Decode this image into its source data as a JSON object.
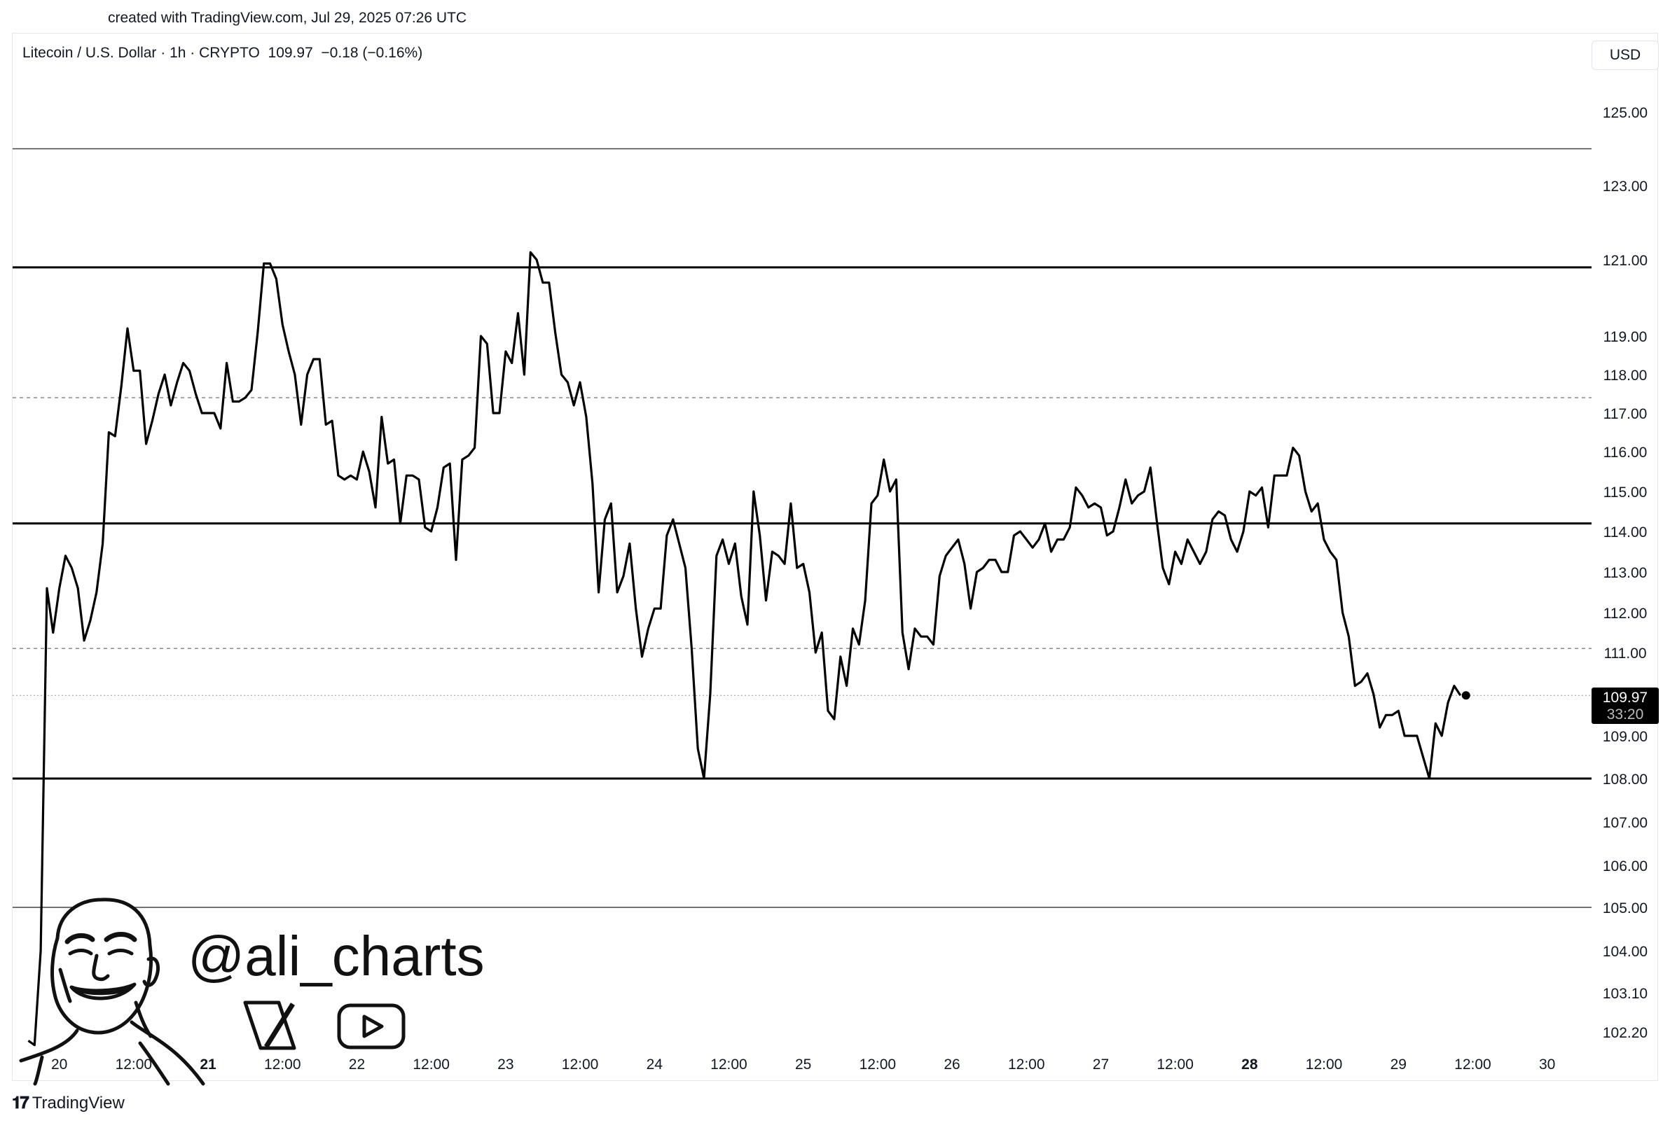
{
  "header": {
    "credit": "created with TradingView.com, Jul 29, 2025 07:26 UTC"
  },
  "legend": {
    "symbol": "Litecoin / U.S. Dollar · 1h · CRYPTO",
    "price": "109.97",
    "change": "−0.18 (−0.16%)"
  },
  "currency_label": "USD",
  "price_tag": {
    "price": "109.97",
    "countdown": "33:20"
  },
  "watermark": {
    "handle": "@ali_charts",
    "icons": [
      "x-logo-icon",
      "youtube-icon",
      "cartoon-avatar"
    ]
  },
  "footer": {
    "brand": "TradingView"
  },
  "colors": {
    "line": "#000000",
    "grid_dash": "#888888",
    "tag_bg": "#000000"
  },
  "chart_data": {
    "type": "line",
    "title": "",
    "xlabel": "",
    "ylabel": "",
    "x_tick_labels": [
      {
        "label": "20",
        "t": -11,
        "bold": false
      },
      {
        "label": "12:00",
        "t": 1,
        "bold": false
      },
      {
        "label": "21",
        "t": 13,
        "bold": true
      },
      {
        "label": "12:00",
        "t": 25,
        "bold": false
      },
      {
        "label": "22",
        "t": 37,
        "bold": false
      },
      {
        "label": "12:00",
        "t": 49,
        "bold": false
      },
      {
        "label": "23",
        "t": 61,
        "bold": false
      },
      {
        "label": "12:00",
        "t": 73,
        "bold": false
      },
      {
        "label": "24",
        "t": 85,
        "bold": false
      },
      {
        "label": "12:00",
        "t": 97,
        "bold": false
      },
      {
        "label": "25",
        "t": 109,
        "bold": false
      },
      {
        "label": "12:00",
        "t": 121,
        "bold": false
      },
      {
        "label": "26",
        "t": 133,
        "bold": false
      },
      {
        "label": "12:00",
        "t": 145,
        "bold": false
      },
      {
        "label": "27",
        "t": 157,
        "bold": false
      },
      {
        "label": "12:00",
        "t": 169,
        "bold": false
      },
      {
        "label": "28",
        "t": 181,
        "bold": true
      },
      {
        "label": "12:00",
        "t": 193,
        "bold": false
      },
      {
        "label": "29",
        "t": 205,
        "bold": false
      },
      {
        "label": "12:00",
        "t": 217,
        "bold": false
      },
      {
        "label": "30",
        "t": 229,
        "bold": false
      }
    ],
    "y_tick_labels": [
      "125.00",
      "123.00",
      "121.00",
      "119.00",
      "118.00",
      "117.00",
      "116.00",
      "115.00",
      "114.00",
      "113.00",
      "112.00",
      "111.00",
      "109.00",
      "108.00",
      "107.00",
      "106.00",
      "105.00",
      "104.00",
      "103.10",
      "102.20"
    ],
    "time_unit": "hours from Jul 20 12:00",
    "series": [
      {
        "values": [
          [
            -16,
            102.0
          ],
          [
            -15,
            101.9
          ],
          [
            -14,
            104.0
          ],
          [
            -13,
            112.6
          ],
          [
            -12,
            111.5
          ],
          [
            -11,
            112.6
          ],
          [
            -10,
            113.4
          ],
          [
            -9,
            113.1
          ],
          [
            -8,
            112.6
          ],
          [
            -7,
            111.3
          ],
          [
            -6,
            111.8
          ],
          [
            -5,
            112.5
          ],
          [
            -4,
            113.7
          ],
          [
            -3,
            116.5
          ],
          [
            -2,
            116.4
          ],
          [
            -1,
            117.7
          ],
          [
            0,
            119.2
          ],
          [
            1,
            118.1
          ],
          [
            2,
            118.1
          ],
          [
            3,
            116.2
          ],
          [
            4,
            116.8
          ],
          [
            5,
            117.5
          ],
          [
            6,
            118.0
          ],
          [
            7,
            117.2
          ],
          [
            8,
            117.8
          ],
          [
            9,
            118.3
          ],
          [
            10,
            118.1
          ],
          [
            11,
            117.5
          ],
          [
            12,
            117.0
          ],
          [
            13,
            117.0
          ],
          [
            14,
            117.0
          ],
          [
            15,
            116.6
          ],
          [
            16,
            118.3
          ],
          [
            17,
            117.3
          ],
          [
            18,
            117.3
          ],
          [
            19,
            117.4
          ],
          [
            20,
            117.6
          ],
          [
            21,
            119.1
          ],
          [
            22,
            120.9
          ],
          [
            23,
            120.9
          ],
          [
            24,
            120.5
          ],
          [
            25,
            119.3
          ],
          [
            26,
            118.6
          ],
          [
            27,
            118.0
          ],
          [
            28,
            116.7
          ],
          [
            29,
            118.0
          ],
          [
            30,
            118.4
          ],
          [
            31,
            118.4
          ],
          [
            32,
            116.7
          ],
          [
            33,
            116.8
          ],
          [
            34,
            115.4
          ],
          [
            35,
            115.3
          ],
          [
            36,
            115.4
          ],
          [
            37,
            115.3
          ],
          [
            38,
            116.0
          ],
          [
            39,
            115.5
          ],
          [
            40,
            114.6
          ],
          [
            41,
            116.9
          ],
          [
            42,
            115.7
          ],
          [
            43,
            115.8
          ],
          [
            44,
            114.2
          ],
          [
            45,
            115.4
          ],
          [
            46,
            115.4
          ],
          [
            47,
            115.3
          ],
          [
            48,
            114.1
          ],
          [
            49,
            114.0
          ],
          [
            50,
            114.6
          ],
          [
            51,
            115.6
          ],
          [
            52,
            115.7
          ],
          [
            53,
            113.3
          ],
          [
            54,
            115.8
          ],
          [
            55,
            115.9
          ],
          [
            56,
            116.1
          ],
          [
            57,
            119.0
          ],
          [
            58,
            118.8
          ],
          [
            59,
            117.0
          ],
          [
            60,
            117.0
          ],
          [
            61,
            118.6
          ],
          [
            62,
            118.3
          ],
          [
            63,
            119.6
          ],
          [
            64,
            118.0
          ],
          [
            65,
            121.2
          ],
          [
            66,
            121.0
          ],
          [
            67,
            120.4
          ],
          [
            68,
            120.4
          ],
          [
            69,
            119.1
          ],
          [
            70,
            118.0
          ],
          [
            71,
            117.8
          ],
          [
            72,
            117.2
          ],
          [
            73,
            117.8
          ],
          [
            74,
            116.9
          ],
          [
            75,
            115.2
          ],
          [
            76,
            112.5
          ],
          [
            77,
            114.3
          ],
          [
            78,
            114.7
          ],
          [
            79,
            112.5
          ],
          [
            80,
            112.9
          ],
          [
            81,
            113.7
          ],
          [
            82,
            112.1
          ],
          [
            83,
            110.9
          ],
          [
            84,
            111.6
          ],
          [
            85,
            112.1
          ],
          [
            86,
            112.1
          ],
          [
            87,
            113.9
          ],
          [
            88,
            114.3
          ],
          [
            89,
            113.7
          ],
          [
            90,
            113.1
          ],
          [
            91,
            111.1
          ],
          [
            92,
            108.7
          ],
          [
            93,
            108.0
          ],
          [
            94,
            110.0
          ],
          [
            95,
            113.4
          ],
          [
            96,
            113.8
          ],
          [
            97,
            113.2
          ],
          [
            98,
            113.7
          ],
          [
            99,
            112.4
          ],
          [
            100,
            111.7
          ],
          [
            101,
            115.0
          ],
          [
            102,
            113.9
          ],
          [
            103,
            112.3
          ],
          [
            104,
            113.5
          ],
          [
            105,
            113.4
          ],
          [
            106,
            113.2
          ],
          [
            107,
            114.7
          ],
          [
            108,
            113.1
          ],
          [
            109,
            113.2
          ],
          [
            110,
            112.5
          ],
          [
            111,
            111.0
          ],
          [
            112,
            111.5
          ],
          [
            113,
            109.6
          ],
          [
            114,
            109.4
          ],
          [
            115,
            110.9
          ],
          [
            116,
            110.2
          ],
          [
            117,
            111.6
          ],
          [
            118,
            111.2
          ],
          [
            119,
            112.3
          ],
          [
            120,
            114.7
          ],
          [
            121,
            114.9
          ],
          [
            122,
            115.8
          ],
          [
            123,
            115.0
          ],
          [
            124,
            115.3
          ],
          [
            125,
            111.5
          ],
          [
            126,
            110.6
          ],
          [
            127,
            111.6
          ],
          [
            128,
            111.4
          ],
          [
            129,
            111.4
          ],
          [
            130,
            111.2
          ],
          [
            131,
            112.9
          ],
          [
            132,
            113.4
          ],
          [
            133,
            113.6
          ],
          [
            134,
            113.8
          ],
          [
            135,
            113.2
          ],
          [
            136,
            112.1
          ],
          [
            137,
            113.0
          ],
          [
            138,
            113.1
          ],
          [
            139,
            113.3
          ],
          [
            140,
            113.3
          ],
          [
            141,
            113.0
          ],
          [
            142,
            113.0
          ],
          [
            143,
            113.9
          ],
          [
            144,
            114.0
          ],
          [
            145,
            113.8
          ],
          [
            146,
            113.6
          ],
          [
            147,
            113.8
          ],
          [
            148,
            114.2
          ],
          [
            149,
            113.5
          ],
          [
            150,
            113.8
          ],
          [
            151,
            113.8
          ],
          [
            152,
            114.1
          ],
          [
            153,
            115.1
          ],
          [
            154,
            114.9
          ],
          [
            155,
            114.6
          ],
          [
            156,
            114.7
          ],
          [
            157,
            114.6
          ],
          [
            158,
            113.9
          ],
          [
            159,
            114.0
          ],
          [
            160,
            114.6
          ],
          [
            161,
            115.3
          ],
          [
            162,
            114.7
          ],
          [
            163,
            114.9
          ],
          [
            164,
            115.0
          ],
          [
            165,
            115.6
          ],
          [
            166,
            114.3
          ],
          [
            167,
            113.1
          ],
          [
            168,
            112.7
          ],
          [
            169,
            113.5
          ],
          [
            170,
            113.2
          ],
          [
            171,
            113.8
          ],
          [
            172,
            113.5
          ],
          [
            173,
            113.2
          ],
          [
            174,
            113.5
          ],
          [
            175,
            114.3
          ],
          [
            176,
            114.5
          ],
          [
            177,
            114.4
          ],
          [
            178,
            113.8
          ],
          [
            179,
            113.5
          ],
          [
            180,
            114.0
          ],
          [
            181,
            115.0
          ],
          [
            182,
            114.9
          ],
          [
            183,
            115.1
          ],
          [
            184,
            114.1
          ],
          [
            185,
            115.4
          ],
          [
            186,
            115.4
          ],
          [
            187,
            115.4
          ],
          [
            188,
            116.1
          ],
          [
            189,
            115.9
          ],
          [
            190,
            115.0
          ],
          [
            191,
            114.5
          ],
          [
            192,
            114.7
          ],
          [
            193,
            113.8
          ],
          [
            194,
            113.5
          ],
          [
            195,
            113.3
          ],
          [
            196,
            112.0
          ],
          [
            197,
            111.4
          ],
          [
            198,
            110.2
          ],
          [
            199,
            110.3
          ],
          [
            200,
            110.5
          ],
          [
            201,
            110.0
          ],
          [
            202,
            109.2
          ],
          [
            203,
            109.5
          ],
          [
            204,
            109.5
          ],
          [
            205,
            109.6
          ],
          [
            206,
            109.0
          ],
          [
            207,
            109.0
          ],
          [
            208,
            109.0
          ],
          [
            209,
            108.5
          ],
          [
            210,
            108.0
          ],
          [
            211,
            109.3
          ],
          [
            212,
            109.0
          ],
          [
            213,
            109.8
          ],
          [
            214,
            110.2
          ],
          [
            215,
            109.97
          ]
        ]
      }
    ],
    "horizontal_levels": [
      {
        "value": 124.0,
        "style": "thin"
      },
      {
        "value": 120.8,
        "style": "solid"
      },
      {
        "value": 117.4,
        "style": "dashed"
      },
      {
        "value": 114.2,
        "style": "solid"
      },
      {
        "value": 111.1,
        "style": "dashed"
      },
      {
        "value": 108.0,
        "style": "solid"
      },
      {
        "value": 105.0,
        "style": "thin"
      }
    ],
    "last_price": 109.97,
    "y_scale": "non-linear (as printed by axis ticks)",
    "grid": false,
    "legend": "none"
  }
}
